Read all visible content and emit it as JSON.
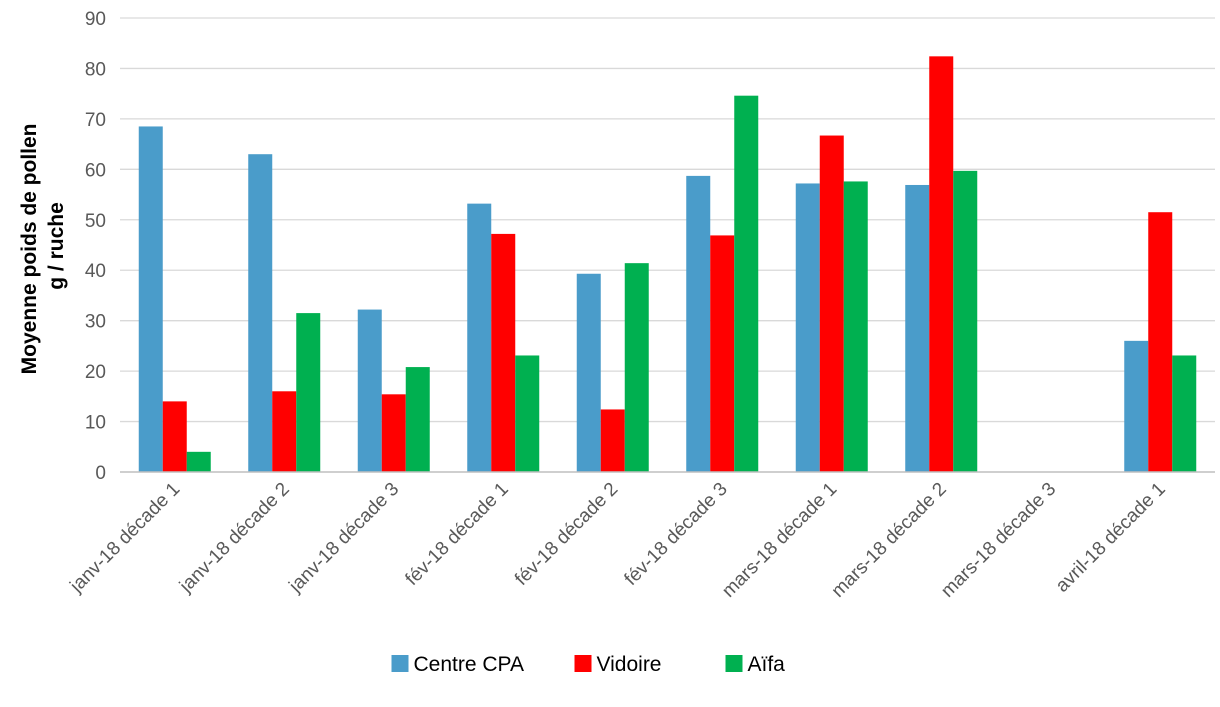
{
  "chart_data": {
    "type": "bar",
    "title": "",
    "xlabel": "",
    "ylabel": [
      "Moyenne poids de pollen",
      "g / ruche"
    ],
    "ylim": [
      0,
      90
    ],
    "yticks": [
      0,
      10,
      20,
      30,
      40,
      50,
      60,
      70,
      80,
      90
    ],
    "grid": true,
    "legend_position": "bottom",
    "categories": [
      "janv-18 décade 1",
      "janv-18 décade 2",
      "janv-18 décade 3",
      "fév-18 décade 1",
      "fév-18 décade 2",
      "fév-18 décade 3",
      "mars-18 décade 1",
      "mars-18 décade 2",
      "mars-18 décade 3",
      "avril-18 décade 1"
    ],
    "series": [
      {
        "name": "Centre CPA",
        "color": "#4a9cca",
        "values": [
          68.5,
          63.0,
          32.2,
          53.2,
          39.3,
          58.7,
          57.2,
          56.9,
          null,
          26.0
        ]
      },
      {
        "name": "Vidoire",
        "color": "#ff0000",
        "values": [
          14.0,
          16.0,
          15.4,
          47.2,
          12.4,
          46.9,
          66.7,
          82.4,
          null,
          51.5
        ]
      },
      {
        "name": "Aïfa",
        "color": "#00b050",
        "values": [
          4.0,
          31.5,
          20.8,
          23.1,
          41.4,
          74.6,
          57.6,
          59.7,
          null,
          23.1
        ]
      }
    ]
  }
}
